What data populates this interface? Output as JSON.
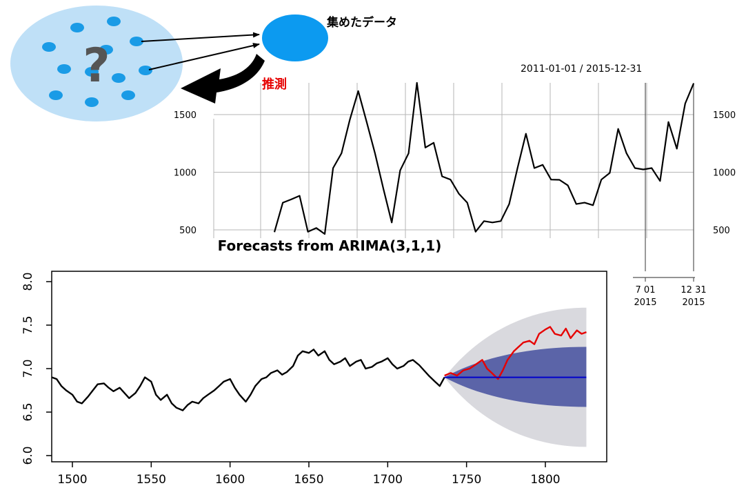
{
  "diagram": {
    "collected_data_label": "集めたデータ",
    "inference_label": "推測",
    "question_mark": "?",
    "colors": {
      "population_fill": "#bfe0f7",
      "data_dot": "#1a9be6",
      "sample_circle": "#0c9af0",
      "question": "#555555",
      "inference_text": "#e60000",
      "arrow": "#000000"
    }
  },
  "chart_data": [
    {
      "type": "line",
      "title": "2011-01-01 / 2015-12-31",
      "y_ticks": [
        "500",
        "1000",
        "1500"
      ],
      "y_ticks_right": [
        "500",
        "1000",
        "1500"
      ],
      "ylim": [
        470,
        1770
      ],
      "x_tick_labels": [
        {
          "top": "7 01",
          "bottom": "2015"
        },
        {
          "top": "12 31",
          "bottom": "2015"
        }
      ],
      "grid": true,
      "series": [
        {
          "color": "#000000",
          "x_frac": [
            0,
            0.02,
            0.04,
            0.06,
            0.08,
            0.1,
            0.12,
            0.14,
            0.16,
            0.18,
            0.2,
            0.22,
            0.24,
            0.26,
            0.28,
            0.3,
            0.32,
            0.34,
            0.36,
            0.38,
            0.4,
            0.42,
            0.44,
            0.46,
            0.48,
            0.5,
            0.52,
            0.54,
            0.56,
            0.58,
            0.6,
            0.62,
            0.64,
            0.66,
            0.68,
            0.7,
            0.72,
            0.74,
            0.76,
            0.78,
            0.8,
            0.82,
            0.84,
            0.86,
            0.88,
            0.9,
            0.92,
            0.94,
            0.96,
            0.98,
            1.0
          ],
          "values": [
            480,
            700,
            800,
            760,
            520,
            480,
            500,
            1000,
            1200,
            1420,
            1740,
            1400,
            1200,
            820,
            600,
            980,
            1200,
            1760,
            1250,
            1220,
            1000,
            900,
            850,
            700,
            520,
            540,
            600,
            540,
            760,
            1000,
            1370,
            1000,
            1100,
            900,
            970,
            850,
            760,
            700,
            750,
            900,
            1030,
            1340,
            1200,
            1000,
            1060,
            1000,
            960,
            1400,
            1240,
            1560,
            1770
          ]
        }
      ]
    },
    {
      "type": "line",
      "title": "Forecasts from ARIMA(3,1,1)",
      "xlim": [
        1487,
        1840
      ],
      "ylim": [
        6.0,
        8.0
      ],
      "x_ticks": [
        1500,
        1550,
        1600,
        1650,
        1700,
        1750,
        1800
      ],
      "y_ticks": [
        "6.0",
        "6.5",
        "7.0",
        "7.5",
        "8.0"
      ],
      "series": [
        {
          "color": "#000000",
          "x": [
            1487,
            1490,
            1493,
            1496,
            1500,
            1503,
            1506,
            1510,
            1513,
            1516,
            1520,
            1523,
            1526,
            1530,
            1533,
            1536,
            1540,
            1543,
            1546,
            1550,
            1553,
            1556,
            1560,
            1563,
            1566,
            1570,
            1573,
            1576,
            1580,
            1583,
            1586,
            1590,
            1593,
            1596,
            1600,
            1603,
            1606,
            1610,
            1613,
            1616,
            1620,
            1623,
            1626,
            1630,
            1633,
            1636,
            1640,
            1643,
            1646,
            1650,
            1653,
            1656,
            1660,
            1663,
            1666,
            1670,
            1673,
            1676,
            1680,
            1683,
            1686,
            1690,
            1693,
            1696,
            1700,
            1703,
            1706,
            1710,
            1713,
            1716,
            1720,
            1723,
            1726,
            1730,
            1733,
            1736
          ],
          "values": [
            6.9,
            6.88,
            6.8,
            6.75,
            6.7,
            6.62,
            6.6,
            6.68,
            6.75,
            6.82,
            6.83,
            6.78,
            6.74,
            6.78,
            6.72,
            6.66,
            6.72,
            6.8,
            6.9,
            6.85,
            6.7,
            6.64,
            6.7,
            6.6,
            6.55,
            6.52,
            6.58,
            6.62,
            6.6,
            6.66,
            6.7,
            6.75,
            6.8,
            6.85,
            6.88,
            6.78,
            6.7,
            6.62,
            6.7,
            6.8,
            6.88,
            6.9,
            6.95,
            6.98,
            6.93,
            6.96,
            7.03,
            7.15,
            7.2,
            7.18,
            7.22,
            7.15,
            7.2,
            7.1,
            7.05,
            7.08,
            7.12,
            7.03,
            7.08,
            7.1,
            7.0,
            7.02,
            7.06,
            7.08,
            7.12,
            7.05,
            7.0,
            7.03,
            7.08,
            7.1,
            7.04,
            6.98,
            6.92,
            6.85,
            6.8,
            6.9
          ]
        },
        {
          "color": "#e60000",
          "x": [
            1736,
            1740,
            1744,
            1748,
            1752,
            1756,
            1760,
            1763,
            1766,
            1770,
            1773,
            1776,
            1780,
            1783,
            1786,
            1790,
            1793,
            1796,
            1800,
            1803,
            1806,
            1810,
            1813,
            1816,
            1820,
            1823,
            1826
          ],
          "values": [
            6.92,
            6.95,
            6.92,
            6.98,
            7.0,
            7.05,
            7.1,
            7.0,
            6.95,
            6.88,
            6.98,
            7.1,
            7.2,
            7.25,
            7.3,
            7.32,
            7.28,
            7.4,
            7.45,
            7.48,
            7.4,
            7.38,
            7.46,
            7.35,
            7.44,
            7.4,
            7.42
          ]
        },
        {
          "color": "#0000cc",
          "x": [
            1736,
            1826
          ],
          "values": [
            6.9,
            6.9
          ]
        }
      ],
      "bands": [
        {
          "level": "outer",
          "color": "#d9d9de",
          "upper_end": 7.7,
          "lower_end": 6.1,
          "start": 6.9,
          "start_x": 1736,
          "end_x": 1826
        },
        {
          "level": "inner",
          "color": "#5b64a8",
          "upper_end": 7.25,
          "lower_end": 6.56,
          "start": 6.9,
          "start_x": 1736,
          "end_x": 1826
        }
      ]
    }
  ]
}
